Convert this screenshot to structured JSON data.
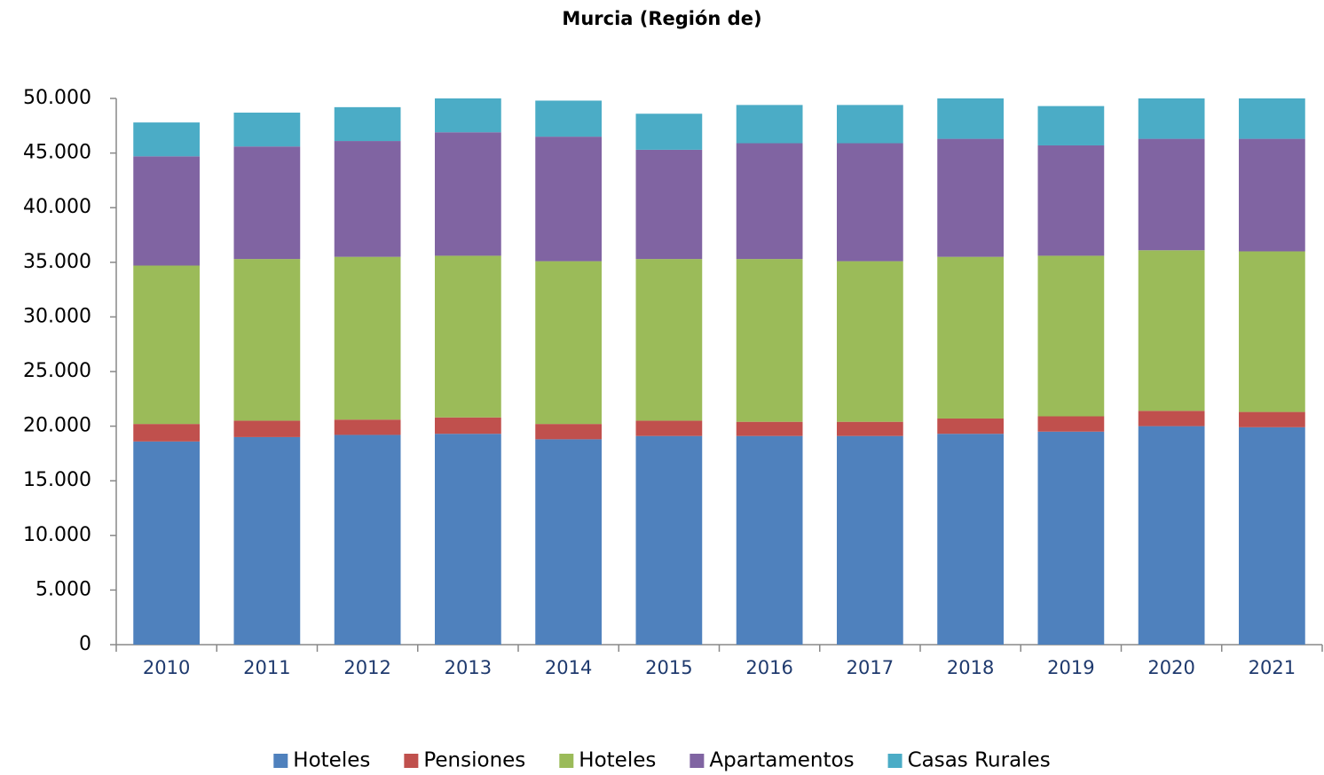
{
  "chart_data": {
    "type": "stacked_bar",
    "title": "Murcia (Región de)",
    "categories": [
      "2010",
      "2011",
      "2012",
      "2013",
      "2014",
      "2015",
      "2016",
      "2017",
      "2018",
      "2019",
      "2020",
      "2021"
    ],
    "series": [
      {
        "name": "Hoteles",
        "color": "#4f81bd",
        "values": [
          18600,
          19000,
          19200,
          19300,
          18800,
          19100,
          19100,
          19100,
          19300,
          19500,
          20000,
          19900
        ]
      },
      {
        "name": "Pensiones",
        "color": "#c0504d",
        "values": [
          1600,
          1500,
          1400,
          1500,
          1400,
          1400,
          1300,
          1300,
          1400,
          1400,
          1400,
          1400
        ]
      },
      {
        "name": "Hoteles",
        "color": "#9bbb59",
        "values": [
          14500,
          14800,
          14900,
          14800,
          14900,
          14800,
          14900,
          14700,
          14800,
          14700,
          14700,
          14700
        ]
      },
      {
        "name": "Apartamentos",
        "color": "#8064a2",
        "values": [
          10000,
          10300,
          10600,
          11300,
          11400,
          10000,
          10600,
          10800,
          10800,
          10100,
          10200,
          10300
        ]
      },
      {
        "name": "Casas Rurales",
        "color": "#4bacc6",
        "values": [
          3100,
          3100,
          3100,
          3100,
          3300,
          3300,
          3500,
          3500,
          3700,
          3600,
          3700,
          3700
        ]
      }
    ],
    "ylim": [
      0,
      50000
    ],
    "yticks": [
      0,
      {
        "value": 5000,
        "label": "5.000"
      },
      {
        "value": 10000,
        "label": "10.000"
      },
      {
        "value": 15000,
        "label": "15.000"
      },
      {
        "value": 20000,
        "label": "20.000"
      },
      {
        "value": 25000,
        "label": "25.000"
      },
      {
        "value": 30000,
        "label": "30.000"
      },
      {
        "value": 35000,
        "label": "35.000"
      },
      {
        "value": 40000,
        "label": "40.000"
      },
      {
        "value": 45000,
        "label": "45.000"
      },
      {
        "value": 50000,
        "label": "50.000"
      }
    ],
    "grid": false,
    "legend": "bottom"
  }
}
